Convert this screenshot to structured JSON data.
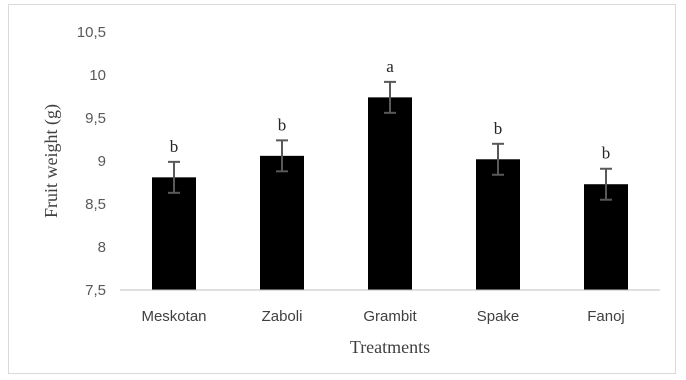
{
  "chart_data": {
    "type": "bar",
    "categories": [
      "Meskotan",
      "Zaboli",
      "Grambit",
      "Spake",
      "Fanoj"
    ],
    "values": [
      8.81,
      9.06,
      9.74,
      9.02,
      8.73
    ],
    "errors": [
      0.18,
      0.18,
      0.18,
      0.18,
      0.18
    ],
    "significance_letters": [
      "b",
      "b",
      "a",
      "b",
      "b"
    ],
    "title": "",
    "xlabel": "Treatments",
    "ylabel": "Fruit weight (g)",
    "ylim": [
      7.5,
      10.5
    ],
    "yticks": [
      "7,5",
      "8",
      "8,5",
      "9",
      "9,5",
      "10",
      "10,5"
    ],
    "ytick_values": [
      7.5,
      8,
      8.5,
      9,
      9.5,
      10,
      10.5
    ],
    "grid": false,
    "legend": "none",
    "bar_color": "#000000",
    "error_bar_color": "#595959"
  }
}
